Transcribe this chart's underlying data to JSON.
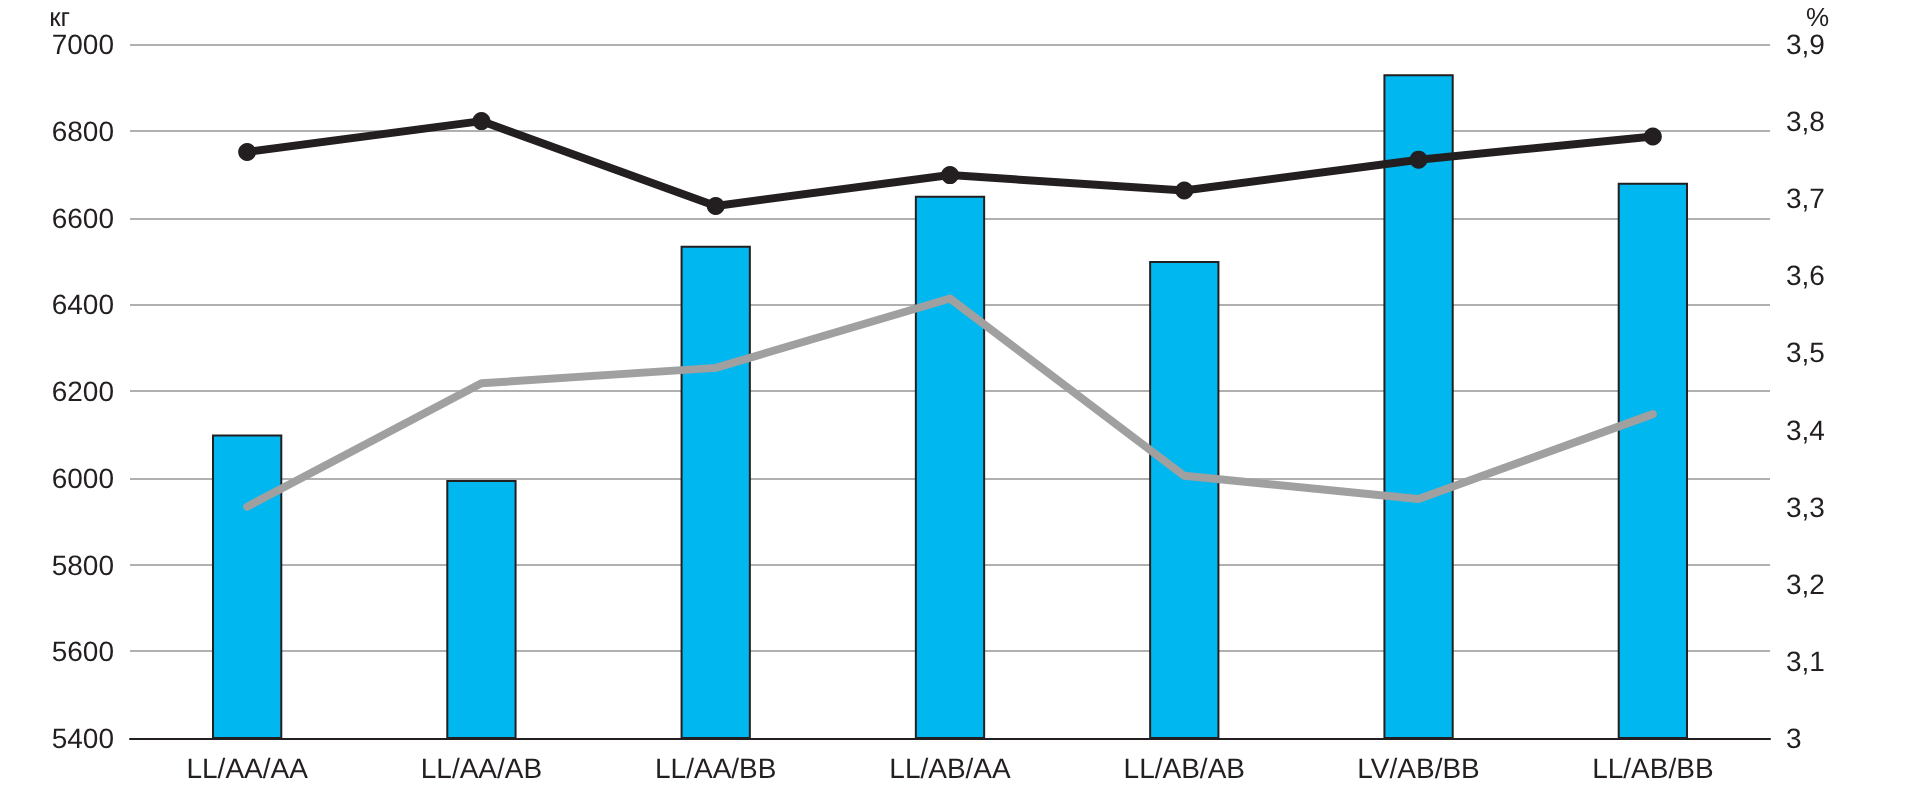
{
  "chart_data": {
    "type": "bar",
    "ylabel": "кг",
    "y2label": "%",
    "categories": [
      "LL/AA/AA",
      "LL/AA/AB",
      "LL/AA/BB",
      "LL/AB/AA",
      "LL/AB/AB",
      "LV/AB/BB",
      "LL/AB/BB"
    ],
    "series": [
      {
        "color": "#00b7ef",
        "values": [
          6100,
          5995,
          6535,
          6650,
          6500,
          6930,
          6680
        ]
      },
      {
        "type": "line",
        "axis": "y2",
        "color": "#231f20",
        "marker": "circle",
        "values": [
          3.76,
          3.8,
          3.69,
          3.73,
          3.71,
          3.75,
          3.78
        ]
      },
      {
        "type": "line",
        "axis": "y2",
        "color": "#a0a0a0",
        "marker": "none",
        "values": [
          3.3,
          3.46,
          3.48,
          3.57,
          3.34,
          3.31,
          3.42
        ]
      }
    ],
    "ylim": [
      5400,
      7000
    ],
    "yticks": [
      5400,
      5600,
      5800,
      6000,
      6200,
      6400,
      6600,
      6800,
      7000
    ],
    "y2lim": [
      3,
      3.9
    ],
    "y2ticks": [
      3,
      {
        "value": 3.1,
        "label": "3,1"
      },
      {
        "value": 3.2,
        "label": "3,2"
      },
      {
        "value": 3.3,
        "label": "3,3"
      },
      {
        "value": 3.4,
        "label": "3,4"
      },
      {
        "value": 3.5,
        "label": "3,5"
      },
      {
        "value": 3.6,
        "label": "3,6"
      },
      {
        "value": 3.7,
        "label": "3,7"
      },
      {
        "value": 3.8,
        "label": "3,8"
      },
      {
        "value": 3.9,
        "label": "3,9"
      }
    ],
    "grid": "y",
    "line_style": "solid"
  }
}
